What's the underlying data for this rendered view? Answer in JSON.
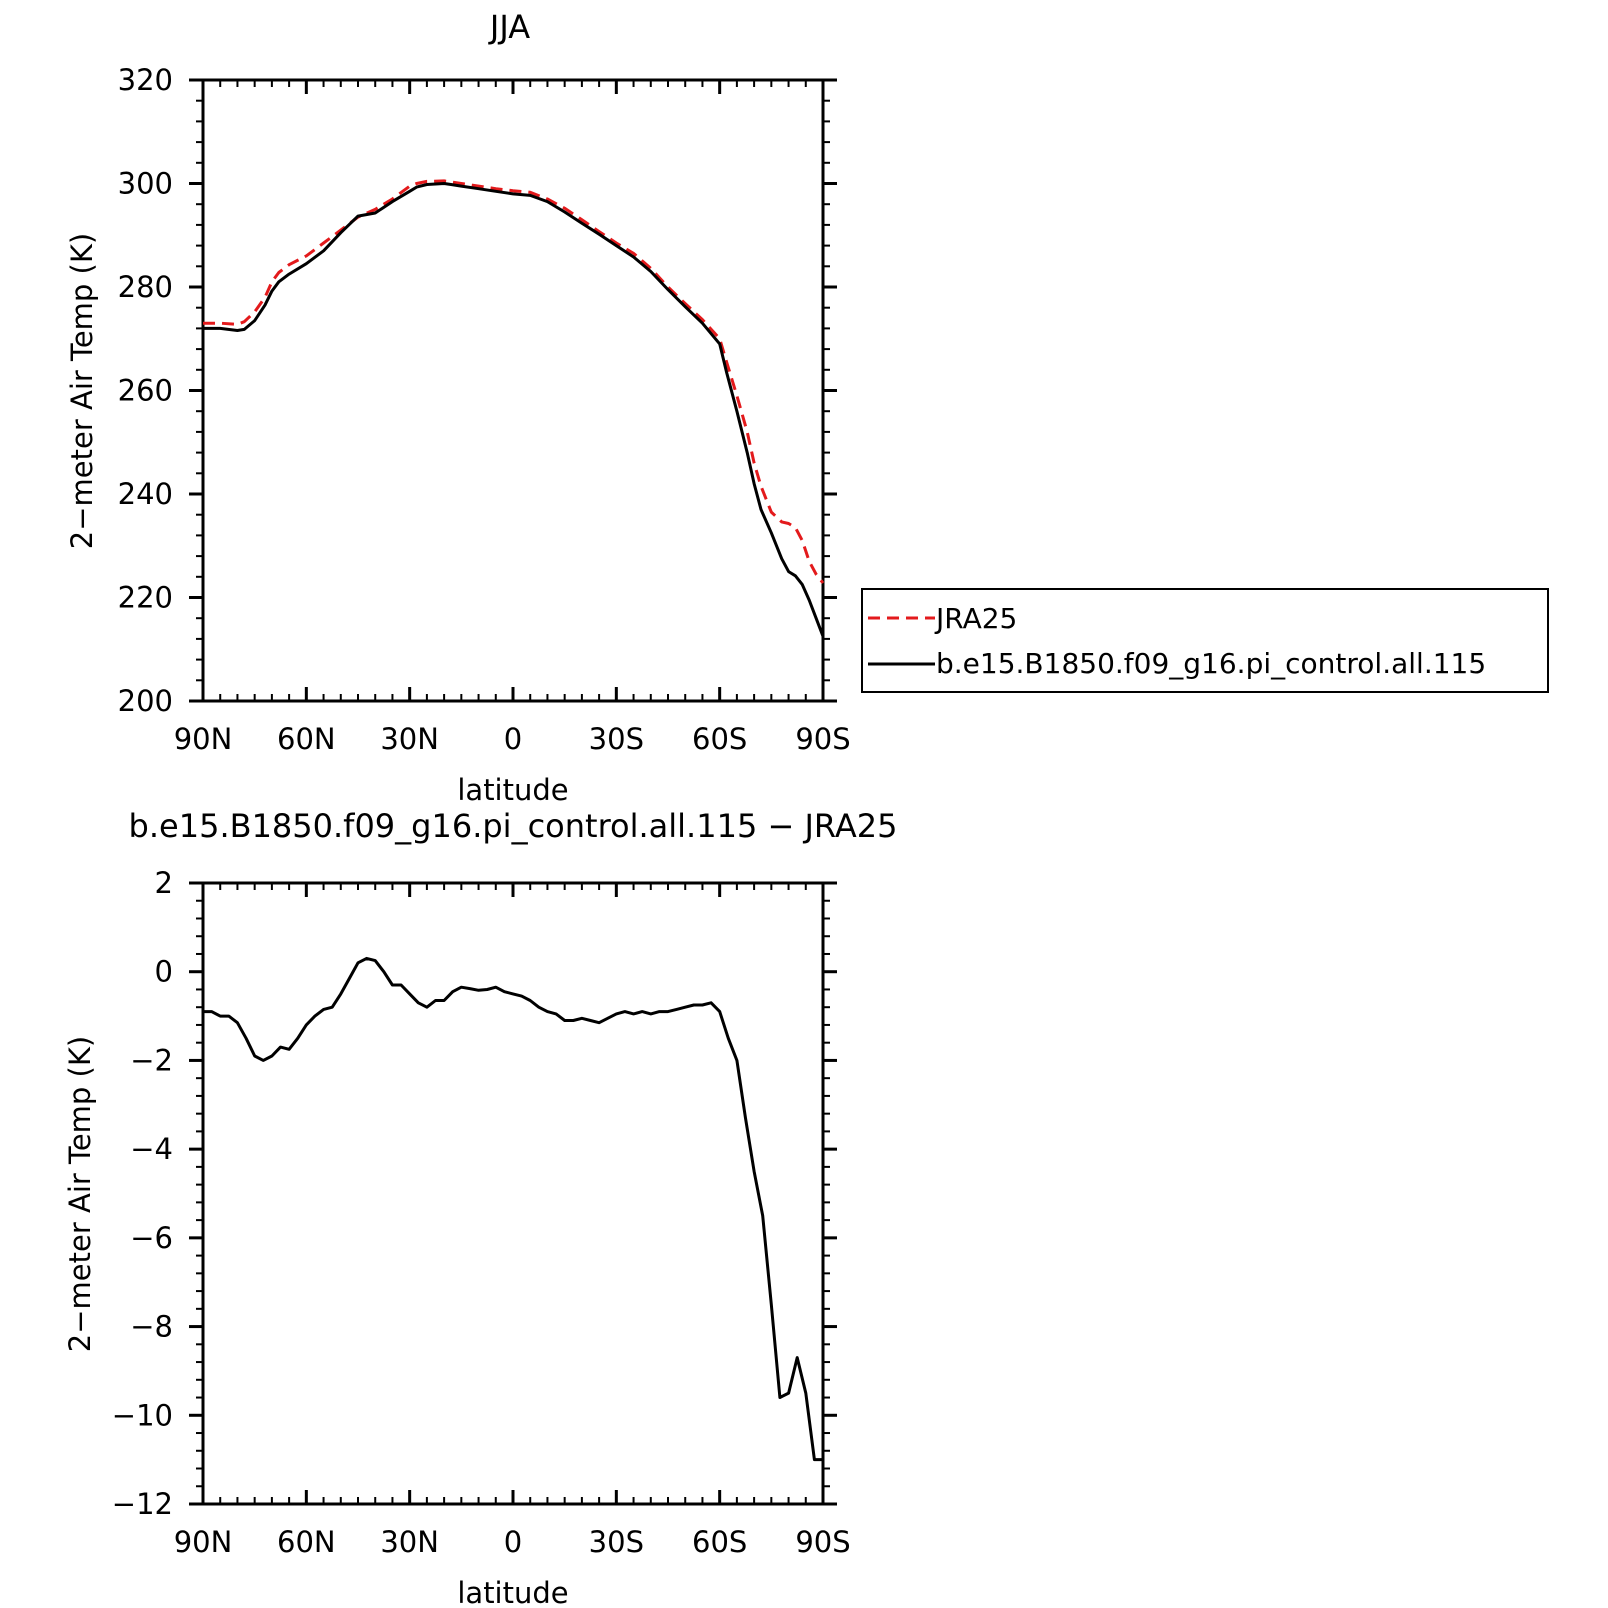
{
  "chart_data": [
    {
      "type": "line",
      "title": "JJA",
      "xlabel": "latitude",
      "ylabel": "2−meter Air Temp (K)",
      "xlim": [
        90,
        -90
      ],
      "ylim": [
        200,
        320
      ],
      "x_ticks": [
        90,
        60,
        30,
        0,
        -30,
        -60,
        -90
      ],
      "x_tick_labels": [
        "90N",
        "60N",
        "30N",
        "0",
        "30S",
        "60S",
        "90S"
      ],
      "y_ticks": [
        200,
        220,
        240,
        260,
        280,
        300,
        320
      ],
      "y_tick_labels": [
        "200",
        "220",
        "240",
        "260",
        "280",
        "300",
        "320"
      ],
      "legend_position": "right",
      "series": [
        {
          "name": "JRA25",
          "color": "#e31a1c",
          "dash": true,
          "x": [
            90,
            85,
            80,
            78,
            75,
            72,
            70,
            68,
            65,
            60,
            55,
            50,
            45,
            40,
            35,
            30,
            28,
            25,
            20,
            18,
            15,
            10,
            5,
            0,
            -5,
            -10,
            -15,
            -20,
            -25,
            -30,
            -35,
            -40,
            -45,
            -50,
            -55,
            -60,
            -62,
            -65,
            -68,
            -70,
            -72,
            -75,
            -78,
            -80,
            -82,
            -84,
            -86,
            -88,
            -90
          ],
          "y": [
            273,
            273,
            272.8,
            273.3,
            275.2,
            278,
            281,
            282.8,
            284.3,
            286,
            288.5,
            291,
            293.5,
            295,
            297,
            299.5,
            300,
            300.4,
            300.5,
            300.3,
            300,
            299.5,
            299,
            298.6,
            298.3,
            297,
            295.2,
            293,
            290.7,
            288.5,
            286.5,
            283.6,
            280,
            276.8,
            273.7,
            270,
            265.5,
            259,
            252,
            246,
            241.5,
            236.5,
            234.6,
            234.3,
            233.5,
            231,
            227,
            224.5,
            222.8
          ]
        },
        {
          "name": "b.e15.B1850.f09_g16.pi_control.all.115",
          "color": "#000000",
          "dash": false,
          "x": [
            90,
            85,
            80,
            78,
            75,
            72,
            70,
            68,
            65,
            60,
            55,
            50,
            45,
            40,
            35,
            30,
            28,
            25,
            20,
            18,
            15,
            10,
            5,
            0,
            -5,
            -10,
            -15,
            -20,
            -25,
            -30,
            -35,
            -40,
            -45,
            -50,
            -55,
            -60,
            -62,
            -65,
            -68,
            -70,
            -72,
            -75,
            -78,
            -80,
            -82,
            -84,
            -86,
            -88,
            -90
          ],
          "y": [
            272,
            272,
            271.6,
            271.8,
            273.5,
            276.5,
            279.2,
            281,
            282.5,
            284.5,
            287,
            290.5,
            293.7,
            294.3,
            296.5,
            298.5,
            299.3,
            299.8,
            300,
            299.8,
            299.5,
            299,
            298.5,
            298,
            297.7,
            296.5,
            294.5,
            292.3,
            290.2,
            288,
            285.8,
            283,
            279.5,
            276.2,
            273,
            269,
            263.5,
            256,
            248,
            242,
            237,
            232.5,
            227.5,
            225,
            224.2,
            222.5,
            219.5,
            216,
            212.5
          ]
        }
      ]
    },
    {
      "type": "line",
      "title": "b.e15.B1850.f09_g16.pi_control.all.115 − JRA25",
      "xlabel": "latitude",
      "ylabel": "2−meter Air Temp (K)",
      "xlim": [
        90,
        -90
      ],
      "ylim": [
        -12,
        2
      ],
      "x_ticks": [
        90,
        60,
        30,
        0,
        -30,
        -60,
        -90
      ],
      "x_tick_labels": [
        "90N",
        "60N",
        "30N",
        "0",
        "30S",
        "60S",
        "90S"
      ],
      "y_ticks": [
        -12,
        -10,
        -8,
        -6,
        -4,
        -2,
        0,
        2
      ],
      "y_tick_labels": [
        "−12",
        "−10",
        "−8",
        "−6",
        "−4",
        "−2",
        "0",
        "2"
      ],
      "series": [
        {
          "color": "#000000",
          "dash": false,
          "x": [
            90,
            87.5,
            85,
            82.5,
            80,
            77.5,
            75,
            72.5,
            70,
            67.5,
            65,
            62.5,
            60,
            57.5,
            55,
            52.5,
            50,
            47.5,
            45,
            42.5,
            40,
            37.5,
            35,
            32.5,
            30,
            27.5,
            25,
            22.5,
            20,
            17.5,
            15,
            12.5,
            10,
            7.5,
            5,
            2.5,
            0,
            -2.5,
            -5,
            -7.5,
            -10,
            -12.5,
            -15,
            -17.5,
            -20,
            -22.5,
            -25,
            -27.5,
            -30,
            -32.5,
            -35,
            -37.5,
            -40,
            -42.5,
            -45,
            -47.5,
            -50,
            -52.5,
            -55,
            -57.5,
            -60,
            -62.5,
            -65,
            -67.5,
            -70,
            -72.5,
            -75,
            -77.5,
            -80,
            -82.5,
            -85,
            -87.5,
            -90
          ],
          "y": [
            -0.9,
            -0.9,
            -1.0,
            -1.0,
            -1.15,
            -1.5,
            -1.9,
            -2.0,
            -1.9,
            -1.7,
            -1.75,
            -1.5,
            -1.2,
            -1.0,
            -0.85,
            -0.8,
            -0.5,
            -0.15,
            0.2,
            0.3,
            0.25,
            0.0,
            -0.3,
            -0.3,
            -0.5,
            -0.7,
            -0.8,
            -0.65,
            -0.65,
            -0.45,
            -0.35,
            -0.38,
            -0.42,
            -0.4,
            -0.35,
            -0.45,
            -0.5,
            -0.55,
            -0.65,
            -0.8,
            -0.9,
            -0.95,
            -1.1,
            -1.1,
            -1.05,
            -1.1,
            -1.15,
            -1.05,
            -0.95,
            -0.9,
            -0.95,
            -0.9,
            -0.95,
            -0.9,
            -0.9,
            -0.85,
            -0.8,
            -0.75,
            -0.75,
            -0.7,
            -0.9,
            -1.5,
            -2.0,
            -3.3,
            -4.5,
            -5.5,
            -7.5,
            -9.6,
            -9.5,
            -8.7,
            -9.5,
            -11.0,
            -11.0
          ]
        }
      ]
    }
  ]
}
